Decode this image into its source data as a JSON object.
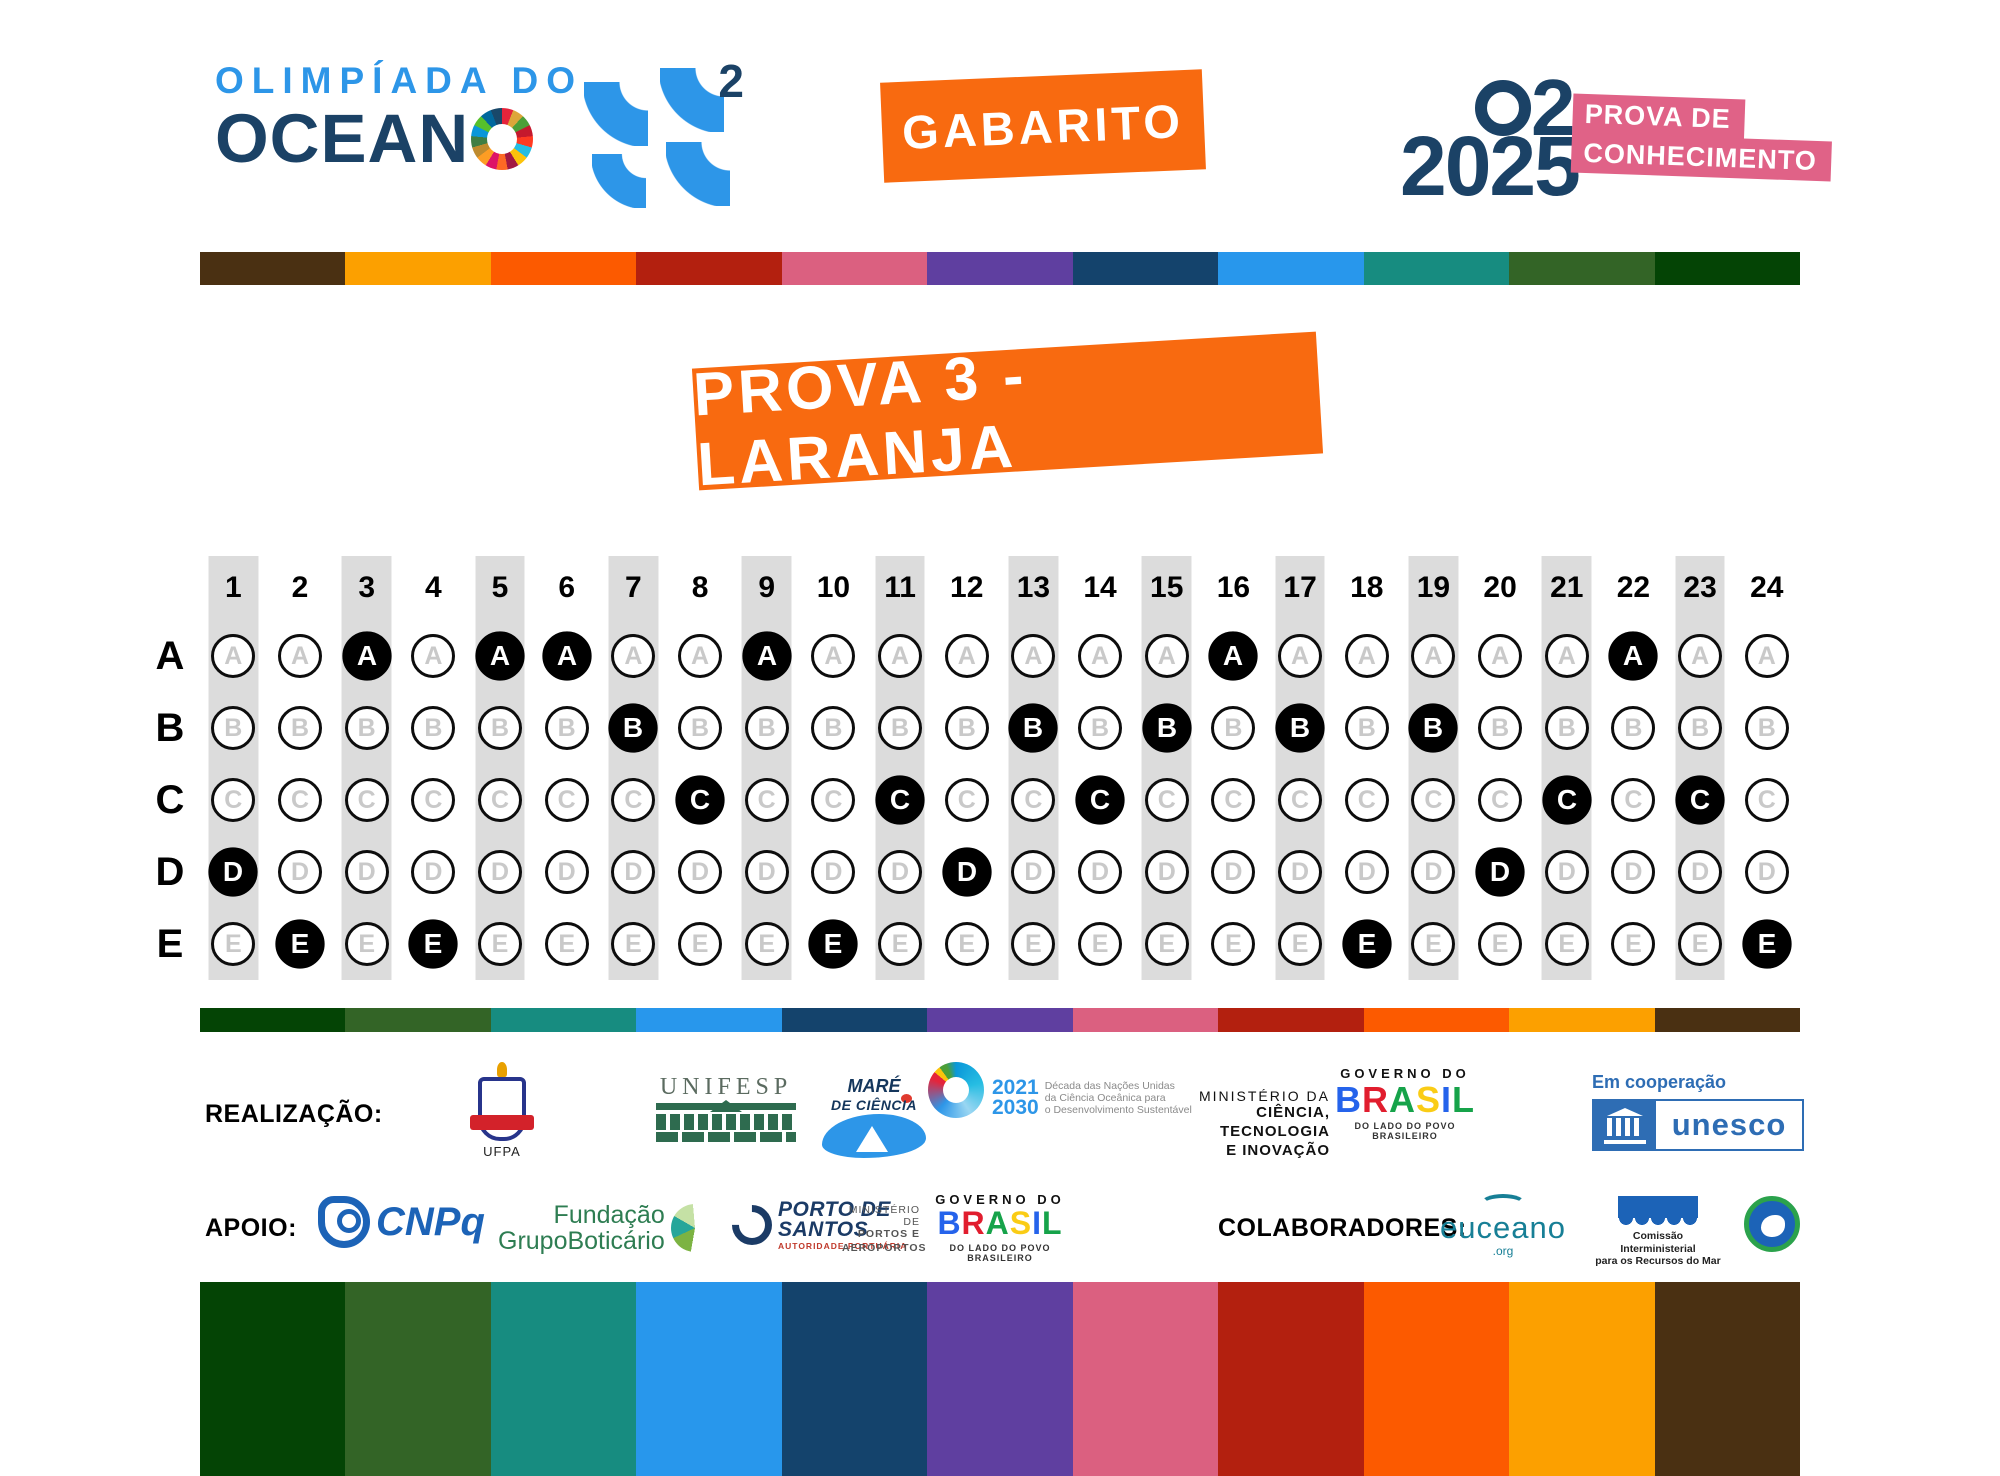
{
  "header": {
    "brand": {
      "line1": "OLIMPÍADA DO",
      "line2_letters": "OCEAN",
      "superscript": "2"
    },
    "gabarito_label": "GABARITO",
    "edition": {
      "o2_two": "2",
      "year": "2025",
      "banner_line1": "PROVA DE",
      "banner_line2": "CONHECIMENTO"
    }
  },
  "title_banner": "PROVA 3 - LARANJA",
  "answer_grid": {
    "row_labels": [
      "A",
      "B",
      "C",
      "D",
      "E"
    ],
    "columns": [
      "1",
      "2",
      "3",
      "4",
      "5",
      "6",
      "7",
      "8",
      "9",
      "10",
      "11",
      "12",
      "13",
      "14",
      "15",
      "16",
      "17",
      "18",
      "19",
      "20",
      "21",
      "22",
      "23",
      "24"
    ],
    "answers": [
      "D",
      "E",
      "A",
      "E",
      "A",
      "A",
      "B",
      "C",
      "A",
      "E",
      "C",
      "D",
      "B",
      "C",
      "B",
      "A",
      "B",
      "E",
      "B",
      "D",
      "C",
      "A",
      "C",
      "E"
    ]
  },
  "colors": {
    "accent_orange": "#F86A10",
    "brand_blue": "#2D96E8",
    "brand_navy": "#1B4266",
    "banner_pink": "#E06287",
    "shaded_column": "#DCDCDC",
    "palette_top_stripe": [
      "#4A3012",
      "#FCA000",
      "#FC5A00",
      "#B3200F",
      "#DB6080",
      "#5F3FA0",
      "#14436C",
      "#2897EC",
      "#178C80",
      "#336426",
      "#044405"
    ],
    "palette_bottom_stripe": [
      "#044405",
      "#336426",
      "#178C80",
      "#2897EC",
      "#14436C",
      "#5F3FA0",
      "#DB6080",
      "#B3200F",
      "#FC5A00",
      "#FCA000",
      "#4A3012"
    ],
    "sdg_wheel": [
      "#E5243B",
      "#DDA63A",
      "#4C9F38",
      "#C5192D",
      "#FF3A21",
      "#26BDE2",
      "#FCC30B",
      "#A21942",
      "#FD6925",
      "#DD1367",
      "#FD9D24",
      "#BF8B2E",
      "#3F7E44",
      "#0A97D9",
      "#56C02B",
      "#00689D",
      "#19486A"
    ],
    "brasil_letter_colors": [
      "#2563EB",
      "#E11D2E",
      "#16A34A",
      "#FACC15",
      "#2563EB",
      "#16A34A"
    ]
  },
  "footer": {
    "realizacao_label": "REALIZAÇÃO:",
    "apoio_label": "APOIO:",
    "colaboradores_label": "COLABORADORES:",
    "ufpa": {
      "name": "UFPA"
    },
    "unifesp": {
      "name": "UNIFESP"
    },
    "mare": {
      "line1": "MARÉ",
      "line2": "DE CIÊNCIA"
    },
    "decade": {
      "year1": "2021",
      "year2": "2030",
      "lines": [
        "Década das Nações Unidas",
        "da Ciência Oceânica para",
        "o Desenvolvimento Sustentável"
      ]
    },
    "mcti": {
      "line1": "MINISTÉRIO DA",
      "line2": "CIÊNCIA, TECNOLOGIA",
      "line3": "E INOVAÇÃO"
    },
    "gov_brasil": {
      "top": "GOVERNO DO",
      "name": "BRASIL",
      "bottom": "DO LADO DO POVO BRASILEIRO"
    },
    "unesco": {
      "coop": "Em cooperação",
      "name": "unesco"
    },
    "cnpq": {
      "name": "CNPq"
    },
    "boticario": {
      "line1": "Fundação",
      "line2": "GrupoBoticário"
    },
    "porto": {
      "line1": "PORTO DE",
      "line2": "SANTOS",
      "line3": "AUTORIDADE PORTUÁRIA"
    },
    "mpa": {
      "line1": "MINISTÉRIO DE",
      "line2": "PORTOS E",
      "line3": "AEROPORTOS"
    },
    "euceano": {
      "name": "euceano",
      "org": ".org"
    },
    "cirm": {
      "line1": "Comissão Interministerial",
      "line2": "para os Recursos do Mar"
    }
  }
}
